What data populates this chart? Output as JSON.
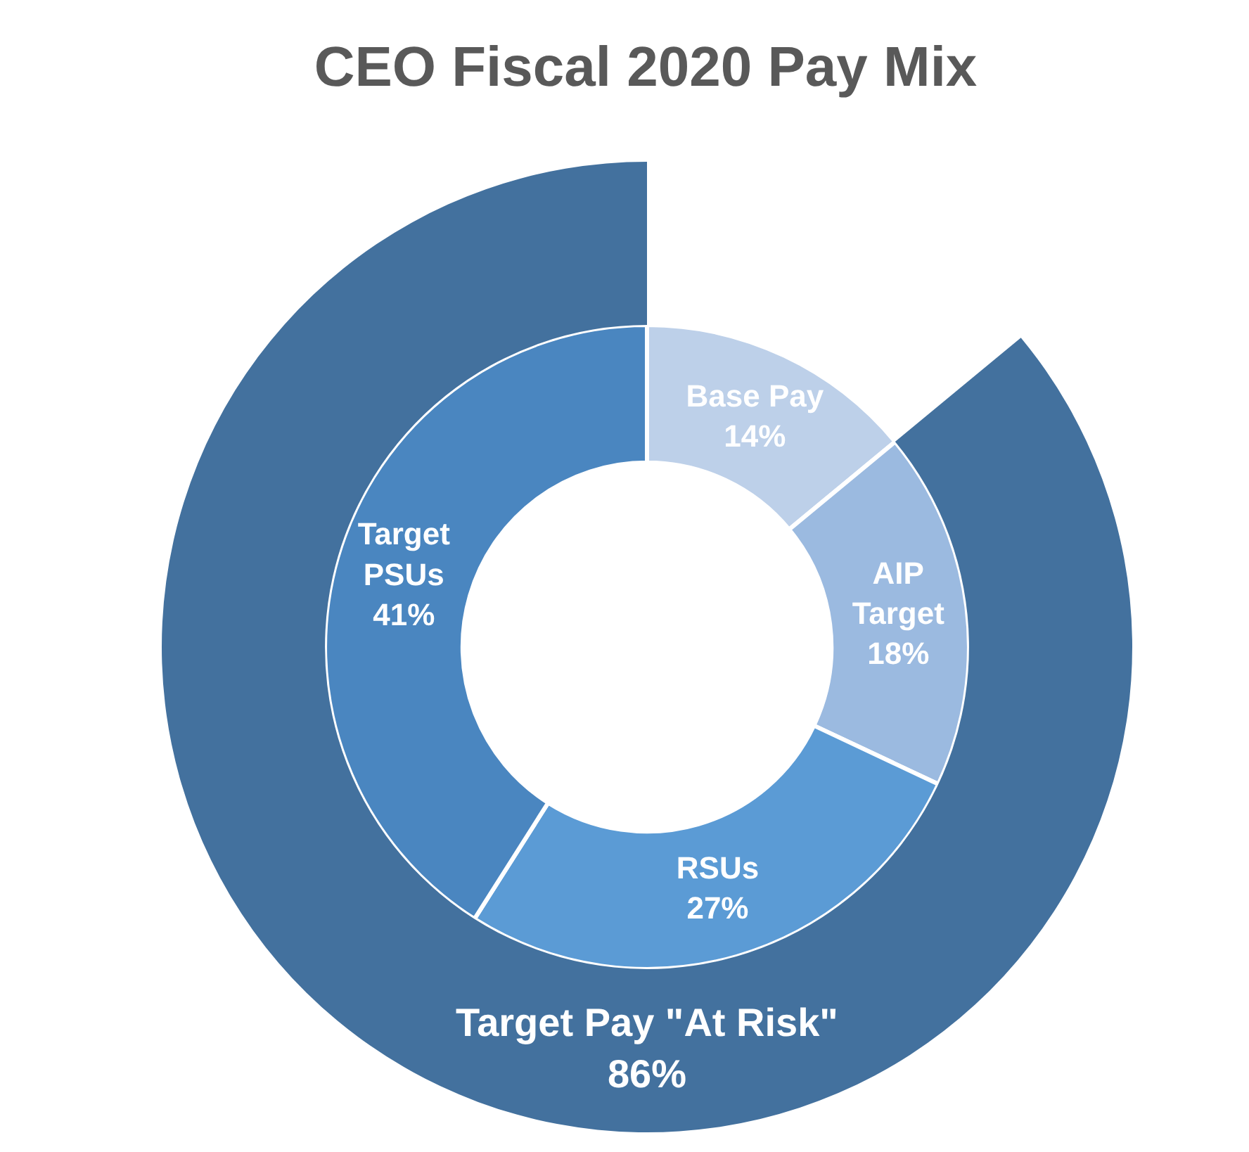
{
  "chart_data": {
    "type": "donut",
    "title": "CEO Fiscal 2020 Pay Mix",
    "data_labels": true,
    "categories": [
      "Base Pay",
      "AIP Target",
      "RSUs",
      "Target PSUs"
    ],
    "series": [
      {
        "values": [
          14,
          18,
          27,
          41
        ],
        "value_labels": [
          "14%",
          "18%",
          "27%",
          "41%"
        ],
        "colors": [
          "#bdd0e9",
          "#9bbae0",
          "#5b9bd5",
          "#4a86c0"
        ]
      },
      {
        "name": "Target Pay \"At Risk\"",
        "values": [
          null,
          86,
          null,
          null
        ],
        "value_labels": [
          null,
          "86%",
          null,
          null
        ],
        "colors": [
          null,
          "#43719e",
          null,
          null
        ]
      }
    ]
  }
}
